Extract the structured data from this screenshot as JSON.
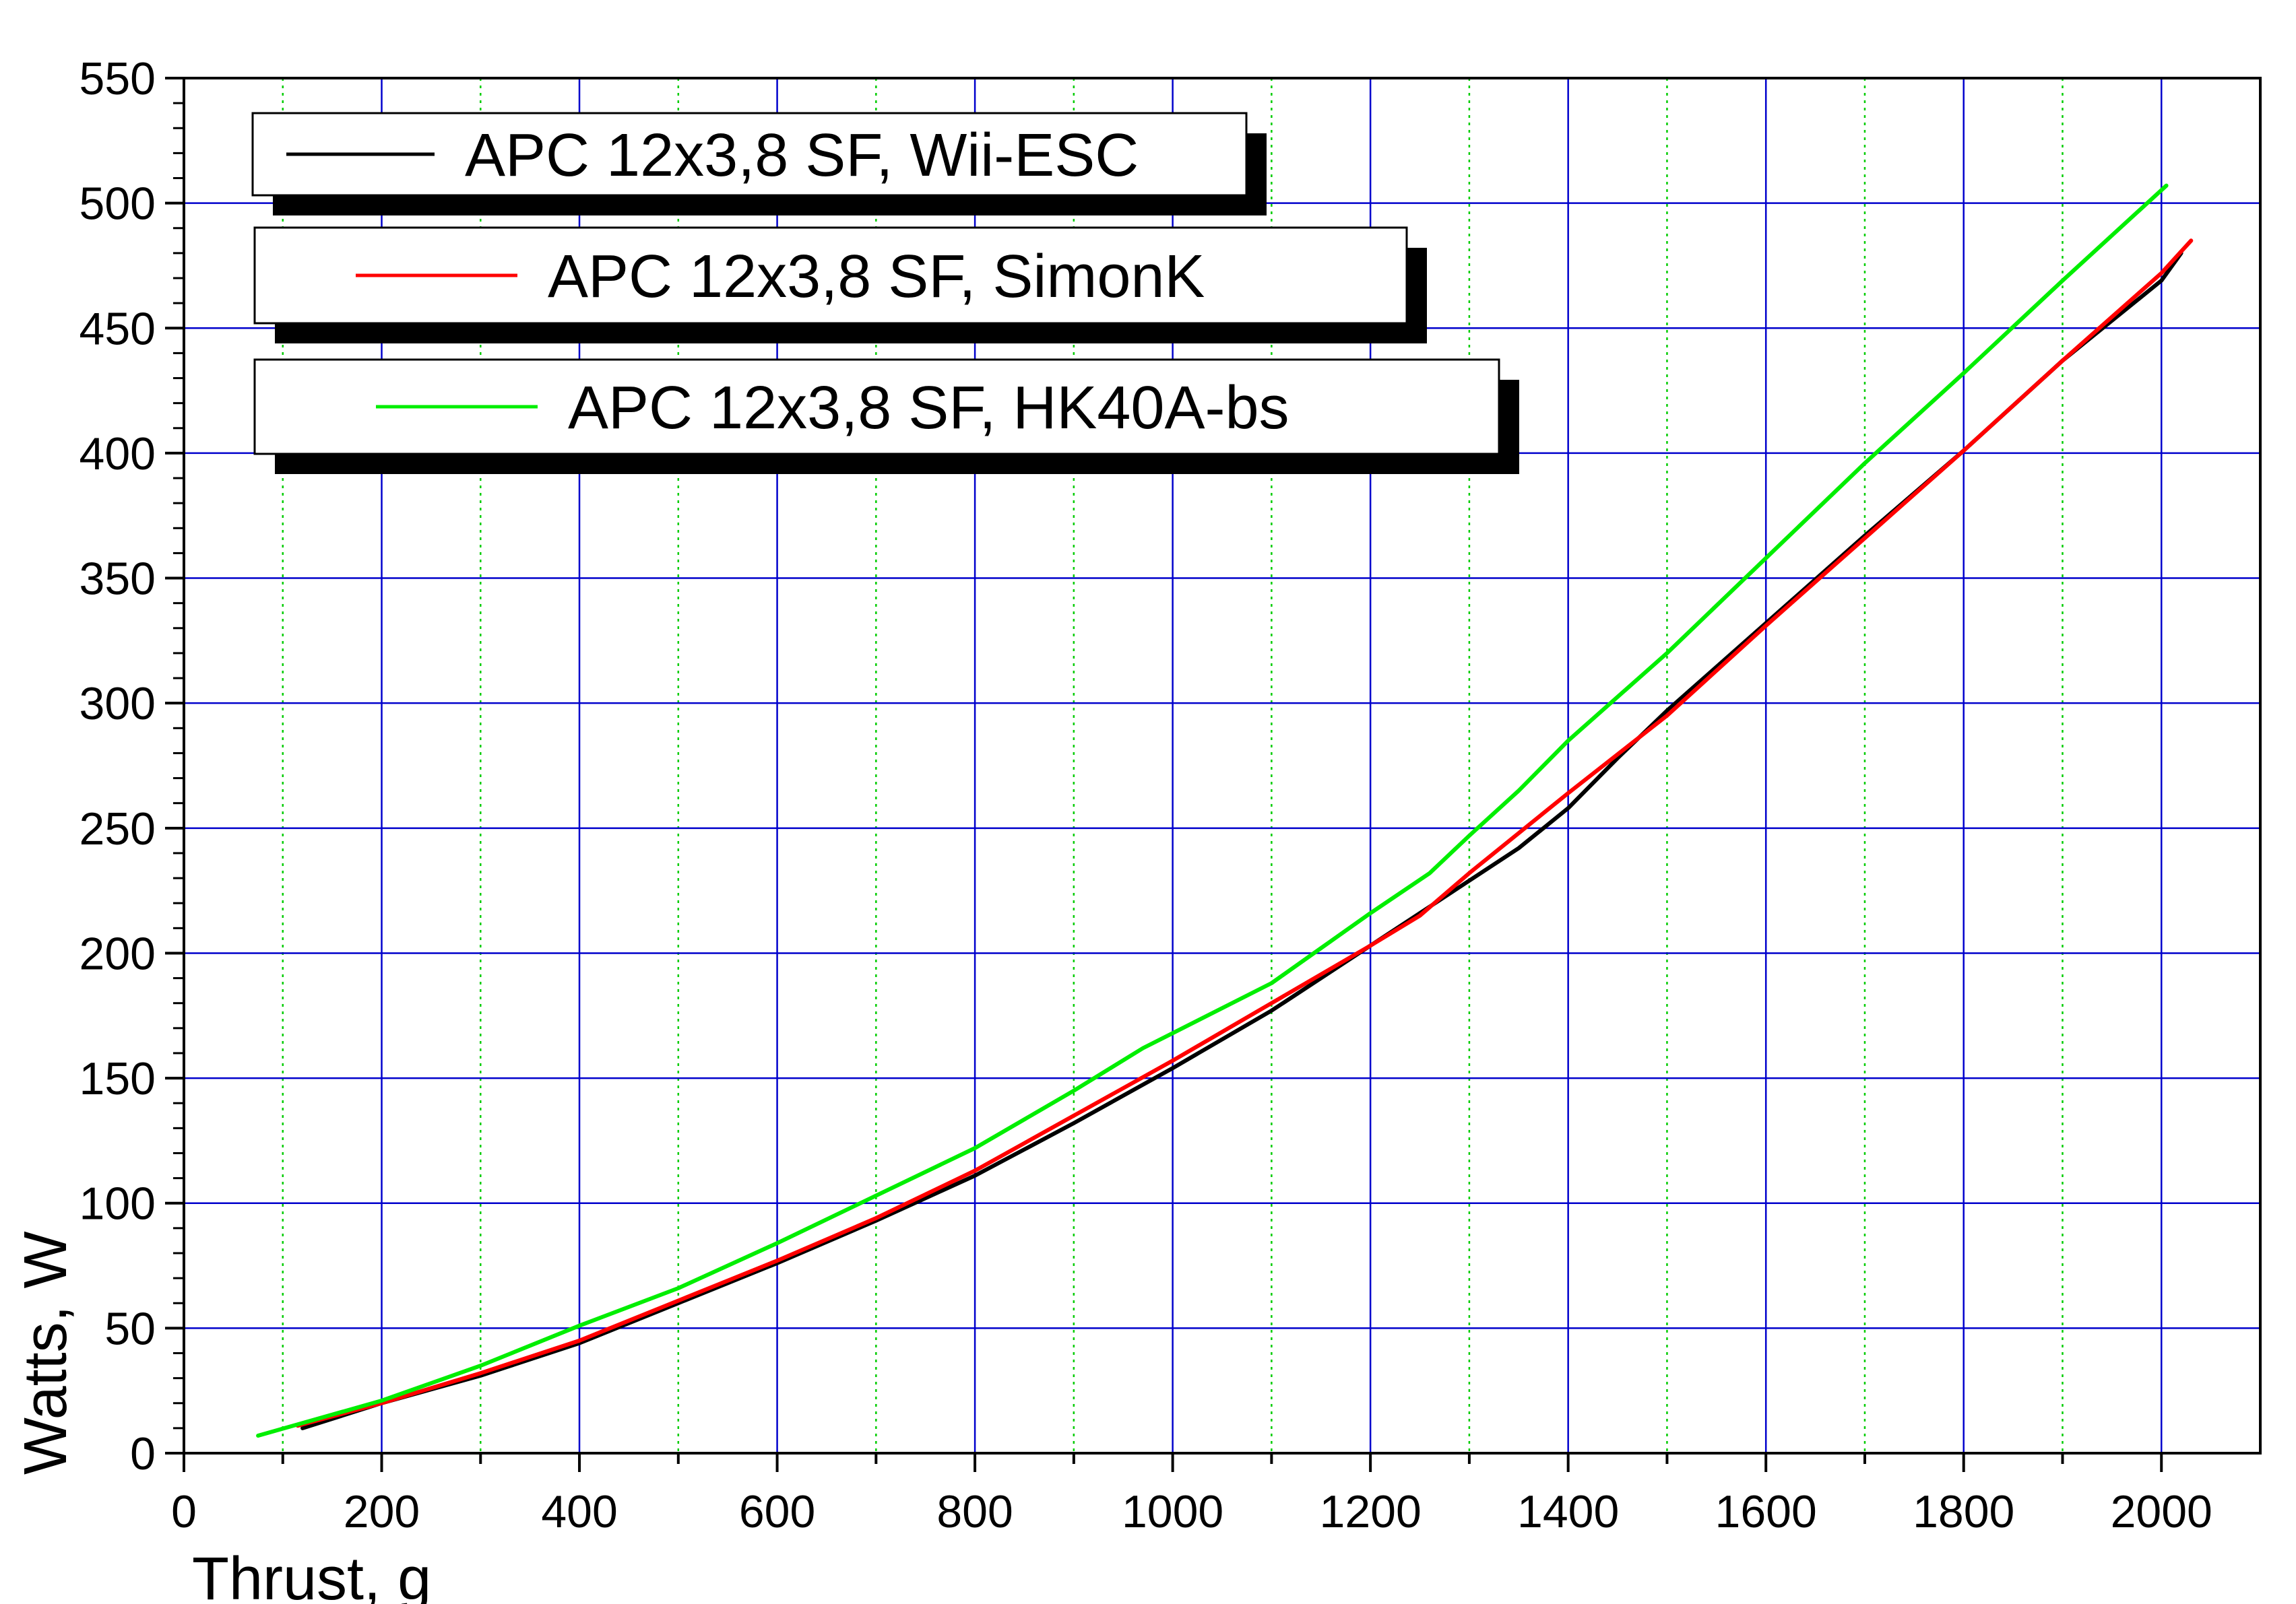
{
  "chart_data": {
    "type": "line",
    "title": "",
    "xlabel": "Thrust, g",
    "ylabel": "Watts, W",
    "xlim": [
      0,
      2100
    ],
    "ylim": [
      0,
      550
    ],
    "x_major_ticks": [
      0,
      200,
      400,
      600,
      800,
      1000,
      1200,
      1400,
      1600,
      1800,
      2000
    ],
    "y_major_ticks": [
      0,
      50,
      100,
      150,
      200,
      250,
      300,
      350,
      400,
      450,
      500,
      550
    ],
    "grid": {
      "major": true,
      "minor_x": true
    },
    "legend_position": "top-left",
    "colors": {
      "major_grid": "#0000cc",
      "minor_grid": "#00cc00",
      "axis": "#000000"
    },
    "series": [
      {
        "name": "APC 12x3,8 SF, Wii-ESC",
        "color": "#000000",
        "x": [
          120,
          200,
          300,
          400,
          500,
          600,
          700,
          800,
          900,
          1000,
          1100,
          1200,
          1300,
          1350,
          1400,
          1450,
          1500,
          1600,
          1700,
          1800,
          1900,
          2000,
          2020
        ],
        "y": [
          10,
          20,
          31,
          44,
          60,
          76,
          93,
          111,
          132,
          154,
          177,
          203,
          229,
          242,
          258,
          278,
          297,
          332,
          367,
          401,
          437,
          469,
          480
        ]
      },
      {
        "name": "APC 12x3,8 SF, SimonK",
        "color": "#ff0000",
        "x": [
          115,
          200,
          300,
          400,
          500,
          600,
          700,
          800,
          900,
          1000,
          1100,
          1200,
          1250,
          1300,
          1350,
          1400,
          1500,
          1600,
          1700,
          1800,
          1900,
          2000,
          2030
        ],
        "y": [
          11,
          20,
          32,
          45,
          61,
          77,
          94,
          113,
          135,
          157,
          180,
          203,
          215,
          232,
          248,
          264,
          295,
          331,
          366,
          401,
          437,
          472,
          485
        ]
      },
      {
        "name": "APC 12x3,8 SF, HK40A-bs",
        "color": "#00ee00",
        "x": [
          75,
          200,
          300,
          400,
          500,
          600,
          700,
          800,
          900,
          970,
          1000,
          1100,
          1150,
          1200,
          1260,
          1300,
          1350,
          1400,
          1500,
          1600,
          1700,
          1800,
          1900,
          2005
        ],
        "y": [
          7,
          21,
          35,
          51,
          66,
          84,
          103,
          122,
          145,
          162,
          168,
          188,
          202,
          216,
          232,
          247,
          265,
          285,
          320,
          358,
          396,
          432,
          469,
          507
        ]
      }
    ]
  }
}
